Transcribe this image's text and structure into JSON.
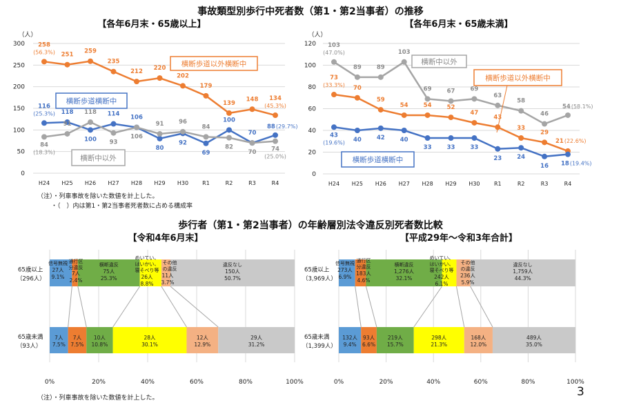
{
  "title_top": "事故類型別歩行中死者数（第1・第2当事者）の推移",
  "title_bottom": "歩行者（第1・第2当事者）の年齢層別法令違反別死者数比較",
  "notes_top": [
    "（注）・列車事故を除いた数値を計上した。",
    "・（　）内は第1・第2当事者死者数に占める構成率"
  ],
  "note_bottom": "（注）・列車事故を除いた数値を計上した。",
  "page_number": "3",
  "chart_data": [
    {
      "type": "line",
      "subtitle": "【各年6月末・65歳以上】",
      "ylabel": "（人）",
      "ylim": [
        0,
        300
      ],
      "yticks": [
        0,
        50,
        100,
        150,
        200,
        250,
        300
      ],
      "grid": true,
      "categories": [
        "H24",
        "H25",
        "H26",
        "H27",
        "H28",
        "H29",
        "H30",
        "R1",
        "R2",
        "R3",
        "R4"
      ],
      "series": [
        {
          "name": "横断歩道以外横断中",
          "color": "#ed7d31",
          "values": [
            258,
            251,
            259,
            235,
            212,
            220,
            202,
            179,
            139,
            148,
            134
          ],
          "annotations": {
            "0": "(56.3%)",
            "10": "(45.3%)"
          }
        },
        {
          "name": "横断歩道横断中",
          "color": "#4472c4",
          "values": [
            116,
            118,
            100,
            114,
            106,
            80,
            92,
            69,
            100,
            70,
            88
          ],
          "annotations": {
            "0": "(25.3%)",
            "10": "(29.7%)"
          }
        },
        {
          "name": "横断中以外",
          "color": "#a5a5a5",
          "values": [
            84,
            91,
            118,
            93,
            106,
            91,
            96,
            84,
            82,
            70,
            74
          ],
          "annotations": {
            "0": "(18.3%)",
            "10": "(25.0%)"
          }
        }
      ]
    },
    {
      "type": "line",
      "subtitle": "【各年6月末・65歳未満】",
      "ylabel": "（人）",
      "ylim": [
        0,
        120
      ],
      "yticks": [
        0,
        20,
        40,
        60,
        80,
        100,
        120
      ],
      "grid": true,
      "categories": [
        "H24",
        "H25",
        "H26",
        "H27",
        "H28",
        "H29",
        "H30",
        "R1",
        "R2",
        "R3",
        "R4"
      ],
      "series": [
        {
          "name": "横断中以外",
          "color": "#a5a5a5",
          "values": [
            103,
            89,
            89,
            103,
            69,
            67,
            69,
            63,
            58,
            46,
            54
          ],
          "annotations": {
            "0": "(47.0%)",
            "10": "(58.1%)"
          }
        },
        {
          "name": "横断歩道以外横断中",
          "color": "#ed7d31",
          "values": [
            73,
            70,
            59,
            54,
            54,
            52,
            47,
            43,
            33,
            29,
            21
          ],
          "annotations": {
            "0": "(33.3%)",
            "10": "(22.6%)"
          }
        },
        {
          "name": "横断歩道横断中",
          "color": "#4472c4",
          "values": [
            43,
            40,
            42,
            40,
            33,
            33,
            33,
            23,
            24,
            16,
            18
          ],
          "annotations": {
            "0": "(19.6%)",
            "10": "(19.4%)"
          }
        }
      ]
    },
    {
      "type": "bar",
      "orientation": "horizontal-stacked-100",
      "subtitle": "【令和4年6月末】",
      "xticks": [
        "0%",
        "20%",
        "40%",
        "60%",
        "80%",
        "100%"
      ],
      "segments": [
        {
          "name": "信号無視",
          "color": "#5b9bd5"
        },
        {
          "name": "通行区分違反",
          "color": "#ed7d31"
        },
        {
          "name": "横断違反",
          "color": "#70ad47"
        },
        {
          "name": "めいてい、はいかい、寝そべり等",
          "color": "#ffff00"
        },
        {
          "name": "その他の違反",
          "color": "#f4b183"
        },
        {
          "name": "違反なし",
          "color": "#c9c9c9"
        }
      ],
      "rows": [
        {
          "label": "65歳以上",
          "total": "（296人）",
          "counts": [
            "27人",
            "7人",
            "75人",
            "26人",
            "11人",
            "150人"
          ],
          "pcts": [
            9.1,
            2.4,
            25.3,
            8.8,
            3.7,
            50.7
          ]
        },
        {
          "label": "65歳未満",
          "total": "（93人）",
          "counts": [
            "7人",
            "7人",
            "10人",
            "28人",
            "12人",
            "29人"
          ],
          "pcts": [
            7.5,
            7.5,
            10.8,
            30.1,
            12.9,
            31.2
          ]
        }
      ]
    },
    {
      "type": "bar",
      "orientation": "horizontal-stacked-100",
      "subtitle": "【平成29年～令和3年合計】",
      "xticks": [
        "0%",
        "20%",
        "40%",
        "60%",
        "80%",
        "100%"
      ],
      "segments": [
        {
          "name": "信号無視",
          "color": "#5b9bd5"
        },
        {
          "name": "通行区分違反",
          "color": "#ed7d31"
        },
        {
          "name": "横断違反",
          "color": "#70ad47"
        },
        {
          "name": "めいてい、はいかい、寝そべり等",
          "color": "#ffff00"
        },
        {
          "name": "その他の違反",
          "color": "#f4b183"
        },
        {
          "name": "違反なし",
          "color": "#c9c9c9"
        }
      ],
      "rows": [
        {
          "label": "65歳以上",
          "total": "（3,969人）",
          "counts": [
            "273人",
            "183人",
            "1,276人",
            "242人",
            "236人",
            "1,759人"
          ],
          "pcts": [
            6.9,
            4.6,
            32.1,
            6.1,
            5.9,
            44.3
          ]
        },
        {
          "label": "65歳未満",
          "total": "（1,399人）",
          "counts": [
            "132人",
            "93人",
            "219人",
            "298人",
            "168人",
            "489人"
          ],
          "pcts": [
            9.4,
            6.6,
            15.7,
            21.3,
            12.0,
            35.0
          ]
        }
      ]
    }
  ]
}
